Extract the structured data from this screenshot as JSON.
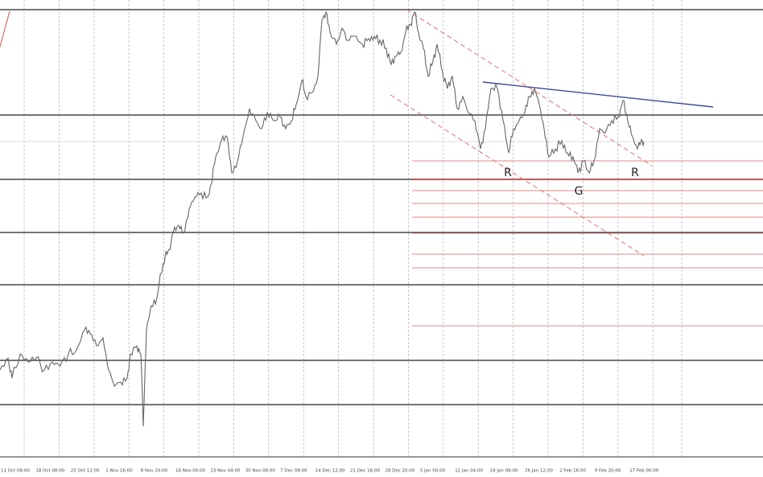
{
  "x_axis": {
    "labels": [
      "11 Oct 08:00",
      "18 Oct 08:00",
      "25 Oct 12:00",
      "1 Nov 16:00",
      "8 Nov 20:00",
      "16 Nov 00:00",
      "23 Nov 04:00",
      "30 Nov 08:00",
      "7 Dec 08:00",
      "14 Dec 12:00",
      "21 Dec 16:00",
      "28 Dec 20:00",
      "5 Jan 00:00",
      "12 Jan 04:00",
      "19 Jan 08:00",
      "26 Jan 12:00",
      "2 Feb 16:00",
      "9 Feb 20:00",
      "17 Feb 00:00"
    ]
  },
  "annotations": [
    "R",
    "G",
    "R"
  ]
}
